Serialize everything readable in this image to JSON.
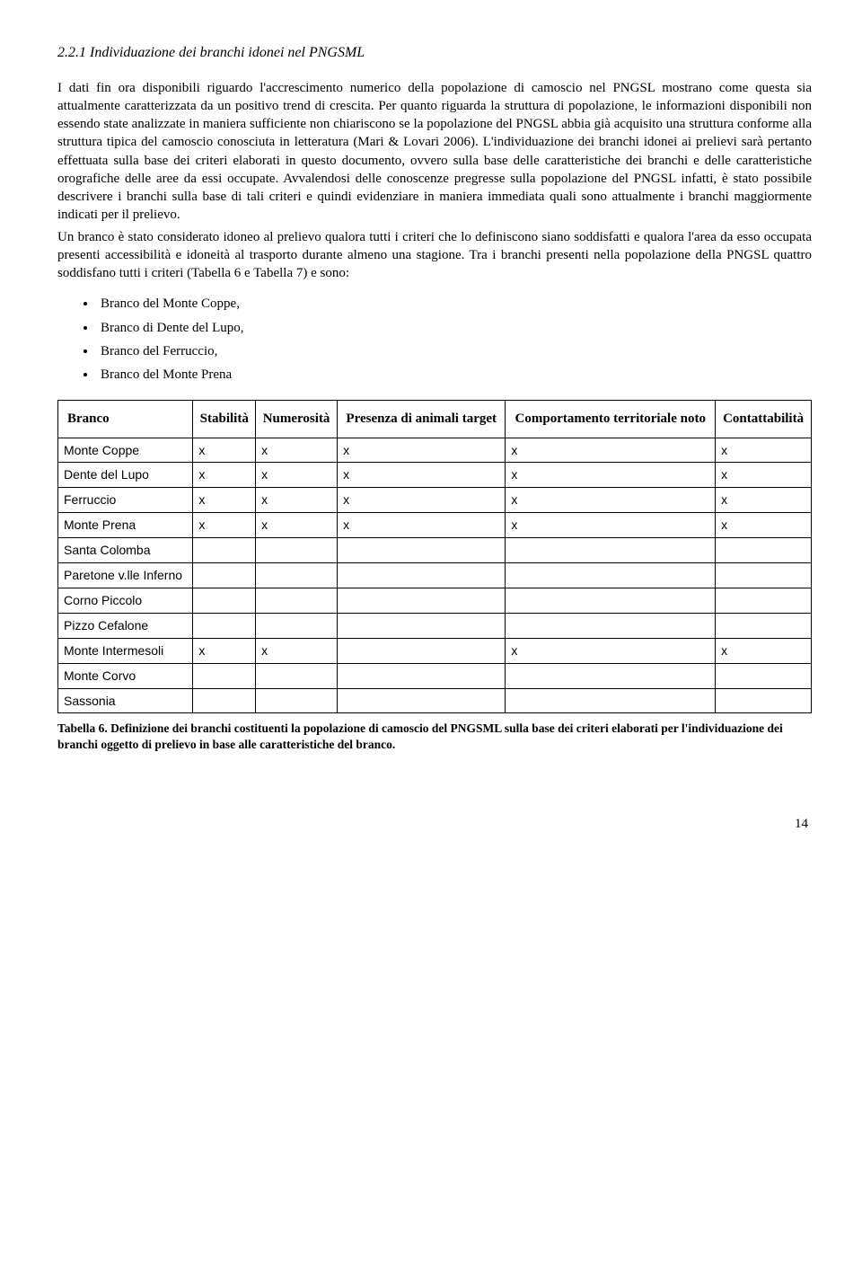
{
  "heading": "2.2.1 Individuazione dei branchi idonei nel PNGSML",
  "para1": "I dati fin ora disponibili riguardo l'accrescimento numerico della popolazione di camoscio nel PNGSL mostrano come questa sia attualmente caratterizzata da un positivo trend di crescita. Per quanto riguarda la struttura di popolazione, le informazioni disponibili non essendo state analizzate in maniera sufficiente non chiariscono se la popolazione del PNGSL abbia già acquisito una struttura conforme alla struttura tipica del camoscio conosciuta in letteratura (Mari & Lovari 2006). L'individuazione dei branchi idonei ai prelievi sarà pertanto effettuata sulla base dei criteri elaborati in questo documento, ovvero sulla base delle caratteristiche dei branchi e delle caratteristiche orografiche delle aree da essi occupate. Avvalendosi delle conoscenze pregresse sulla popolazione del PNGSL infatti, è stato possibile descrivere i branchi sulla base di tali criteri e quindi evidenziare in maniera immediata quali sono attualmente i branchi maggiormente indicati per il prelievo.",
  "para2": "Un branco è stato considerato idoneo al prelievo qualora tutti i criteri che lo definiscono siano soddisfatti e qualora l'area da esso occupata presenti accessibilità e idoneità al trasporto durante almeno una stagione. Tra i branchi presenti nella popolazione della PNGSL  quattro soddisfano tutti i criteri (Tabella 6 e Tabella 7) e sono:",
  "bullets": [
    "Branco del Monte Coppe,",
    "Branco di Dente del Lupo,",
    "Branco del Ferruccio,",
    "Branco del Monte Prena"
  ],
  "table": {
    "headers": {
      "c0": "Branco",
      "c1": "Stabilità",
      "c2": "Numerosità",
      "c3": "Presenza di animali target",
      "c4": "Comportamento territoriale noto",
      "c5": "Contattabilità"
    },
    "rows": [
      {
        "name": "Monte Coppe",
        "c1": "x",
        "c2": "x",
        "c3": "x",
        "c4": "x",
        "c5": "x"
      },
      {
        "name": "Dente del Lupo",
        "c1": "x",
        "c2": "x",
        "c3": "x",
        "c4": "x",
        "c5": "x"
      },
      {
        "name": "Ferruccio",
        "c1": "x",
        "c2": "x",
        "c3": "x",
        "c4": "x",
        "c5": "x"
      },
      {
        "name": "Monte Prena",
        "c1": "x",
        "c2": "x",
        "c3": "x",
        "c4": "x",
        "c5": "x"
      },
      {
        "name": "Santa Colomba",
        "c1": "",
        "c2": "",
        "c3": "",
        "c4": "",
        "c5": ""
      },
      {
        "name": "Paretone v.lle Inferno",
        "c1": "",
        "c2": "",
        "c3": "",
        "c4": "",
        "c5": ""
      },
      {
        "name": "Corno Piccolo",
        "c1": "",
        "c2": "",
        "c3": "",
        "c4": "",
        "c5": ""
      },
      {
        "name": "Pizzo Cefalone",
        "c1": "",
        "c2": "",
        "c3": "",
        "c4": "",
        "c5": ""
      },
      {
        "name": "Monte Intermesoli",
        "c1": "x",
        "c2": "x",
        "c3": "",
        "c4": "x",
        "c5": "x"
      },
      {
        "name": "Monte Corvo",
        "c1": "",
        "c2": "",
        "c3": "",
        "c4": "",
        "c5": ""
      },
      {
        "name": "Sassonia",
        "c1": "",
        "c2": "",
        "c3": "",
        "c4": "",
        "c5": ""
      }
    ]
  },
  "caption": "Tabella 6. Definizione dei branchi costituenti la popolazione di camoscio del PNGSML sulla base dei criteri elaborati per l'individuazione dei branchi oggetto di prelievo in base alle caratteristiche del branco.",
  "page_number": "14"
}
